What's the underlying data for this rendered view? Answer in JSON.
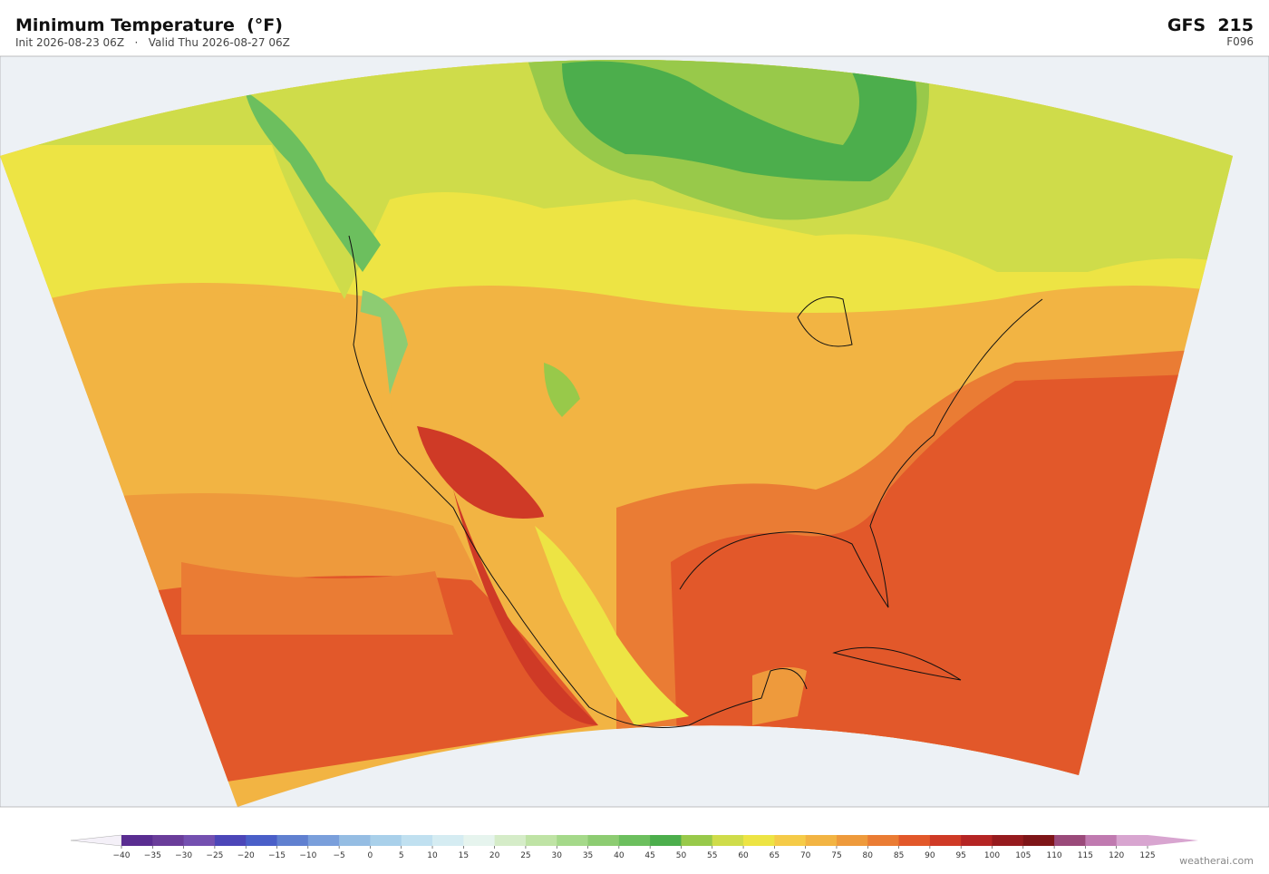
{
  "header": {
    "title": "Minimum Temperature  (°F)",
    "subtitle": "Init 2026-08-23 06Z   ·   Valid Thu 2026-08-27 06Z",
    "model": "GFS  215",
    "forecast_hour": "F096"
  },
  "colorbar": {
    "ticks": [
      {
        "value": -40,
        "label": "−40"
      },
      {
        "value": -35,
        "label": "−35"
      },
      {
        "value": -30,
        "label": "−30"
      },
      {
        "value": -25,
        "label": "−25"
      },
      {
        "value": -20,
        "label": "−20"
      },
      {
        "value": -15,
        "label": "−15"
      },
      {
        "value": -10,
        "label": "−10"
      },
      {
        "value": -5,
        "label": "−5"
      },
      0,
      5,
      10,
      15,
      20,
      25,
      30,
      35,
      40,
      45,
      50,
      55,
      60,
      65,
      70,
      75,
      80,
      85,
      90,
      95,
      100,
      105,
      110,
      115,
      120,
      125
    ],
    "colors": [
      "#5a2d91",
      "#6a3d9a",
      "#7450b0",
      "#4c46b8",
      "#4a5fc8",
      "#6080d0",
      "#7a9fdb",
      "#95bde3",
      "#a9d0ea",
      "#c0e0f0",
      "#d5ecf2",
      "#e6f4ee",
      "#d5ecc8",
      "#bfe3a5",
      "#a5d98a",
      "#8dcc72",
      "#6cbf5e",
      "#4cae4c",
      "#98c94a",
      "#cfdc4a",
      "#ede444",
      "#f5cb48",
      "#f2b443",
      "#ee9a3c",
      "#ea7c34",
      "#e2582a",
      "#cf3a26",
      "#b52524",
      "#961b1e",
      "#7e1518",
      "#9a4a7a",
      "#c07ab0",
      "#d8a5d0"
    ],
    "under_color": "#f4f0f8",
    "over_color": "#d8a5d0"
  },
  "footer": {
    "credit": "weatherai.com"
  }
}
